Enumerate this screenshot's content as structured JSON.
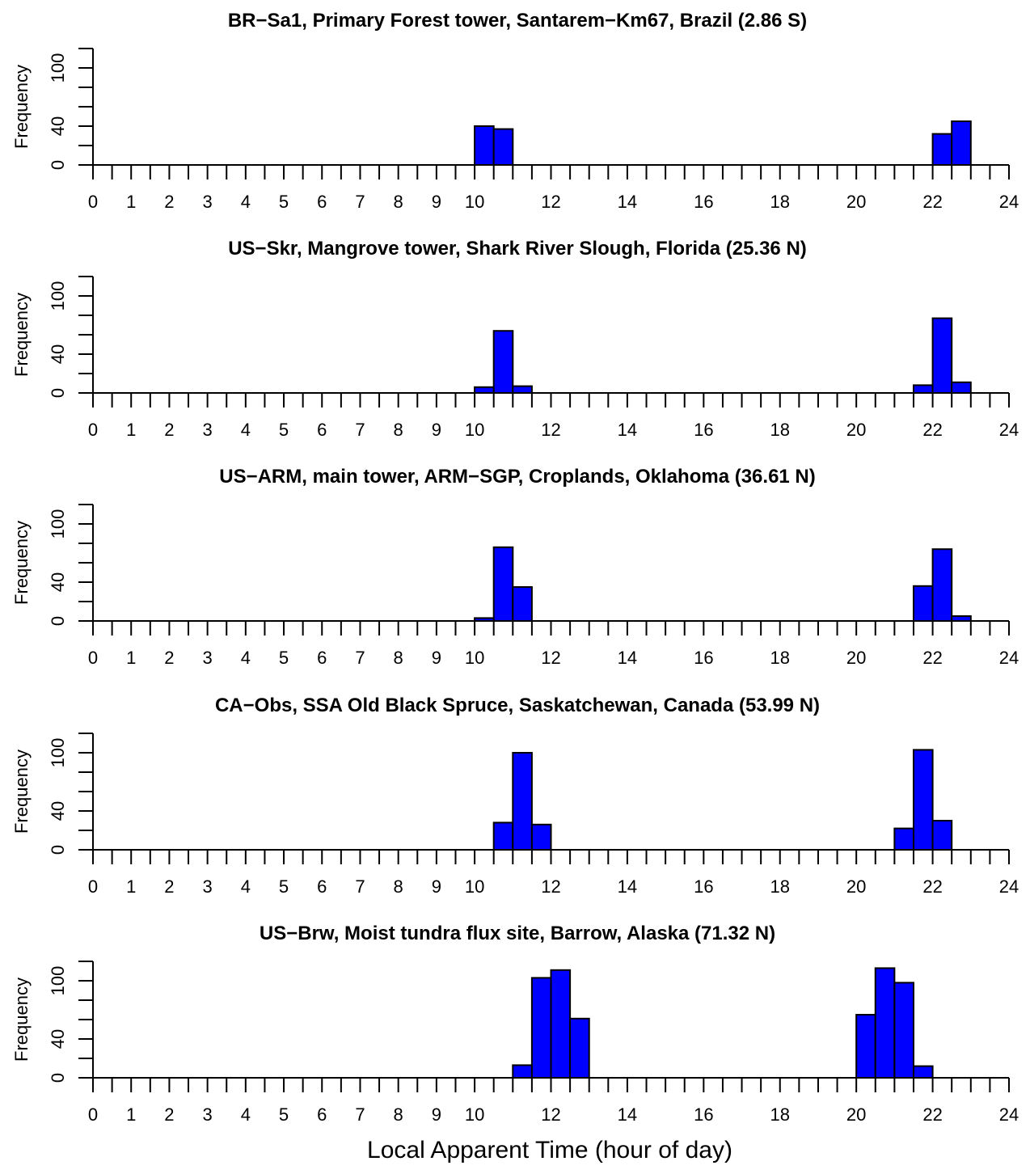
{
  "figure": {
    "xlabel": "Local Apparent Time (hour of day)"
  },
  "chart_data": [
    {
      "type": "bar",
      "title": "BR−Sa1, Primary Forest tower, Santarem−Km67, Brazil (2.86 S)",
      "ylabel": "Frequency",
      "xlabel": "Local Apparent Time (hour of day)",
      "xlim": [
        0,
        24
      ],
      "ylim": [
        0,
        120
      ],
      "bar_color": "#0000ff",
      "bin_width": 0.5,
      "yticks_labeled": [
        0,
        40,
        100
      ],
      "x_tick_labels": [
        "0",
        "1",
        "2",
        "3",
        "4",
        "5",
        "6",
        "7",
        "8",
        "9",
        "10",
        "12",
        "14",
        "16",
        "18",
        "20",
        "22",
        "24"
      ],
      "bins": [
        {
          "start": 10.0,
          "end": 10.5,
          "value": 40
        },
        {
          "start": 10.5,
          "end": 11.0,
          "value": 37
        },
        {
          "start": 22.0,
          "end": 22.5,
          "value": 32
        },
        {
          "start": 22.5,
          "end": 23.0,
          "value": 45
        }
      ]
    },
    {
      "type": "bar",
      "title": "US−Skr, Mangrove tower, Shark River Slough, Florida (25.36 N)",
      "ylabel": "Frequency",
      "xlabel": "Local Apparent Time (hour of day)",
      "xlim": [
        0,
        24
      ],
      "ylim": [
        0,
        120
      ],
      "bar_color": "#0000ff",
      "bin_width": 0.5,
      "yticks_labeled": [
        0,
        40,
        100
      ],
      "x_tick_labels": [
        "0",
        "1",
        "2",
        "3",
        "4",
        "5",
        "6",
        "7",
        "8",
        "9",
        "10",
        "12",
        "14",
        "16",
        "18",
        "20",
        "22",
        "24"
      ],
      "bins": [
        {
          "start": 10.0,
          "end": 10.5,
          "value": 6
        },
        {
          "start": 10.5,
          "end": 11.0,
          "value": 64
        },
        {
          "start": 11.0,
          "end": 11.5,
          "value": 7
        },
        {
          "start": 21.5,
          "end": 22.0,
          "value": 8
        },
        {
          "start": 22.0,
          "end": 22.5,
          "value": 77
        },
        {
          "start": 22.5,
          "end": 23.0,
          "value": 11
        }
      ]
    },
    {
      "type": "bar",
      "title": "US−ARM, main tower, ARM−SGP, Croplands, Oklahoma (36.61 N)",
      "ylabel": "Frequency",
      "xlabel": "Local Apparent Time (hour of day)",
      "xlim": [
        0,
        24
      ],
      "ylim": [
        0,
        120
      ],
      "bar_color": "#0000ff",
      "bin_width": 0.5,
      "yticks_labeled": [
        0,
        40,
        100
      ],
      "x_tick_labels": [
        "0",
        "1",
        "2",
        "3",
        "4",
        "5",
        "6",
        "7",
        "8",
        "9",
        "10",
        "12",
        "14",
        "16",
        "18",
        "20",
        "22",
        "24"
      ],
      "bins": [
        {
          "start": 10.0,
          "end": 10.5,
          "value": 3
        },
        {
          "start": 10.5,
          "end": 11.0,
          "value": 76
        },
        {
          "start": 11.0,
          "end": 11.5,
          "value": 35
        },
        {
          "start": 21.5,
          "end": 22.0,
          "value": 36
        },
        {
          "start": 22.0,
          "end": 22.5,
          "value": 74
        },
        {
          "start": 22.5,
          "end": 23.0,
          "value": 5
        }
      ]
    },
    {
      "type": "bar",
      "title": "CA−Obs, SSA Old Black Spruce, Saskatchewan, Canada (53.99 N)",
      "ylabel": "Frequency",
      "xlabel": "Local Apparent Time (hour of day)",
      "xlim": [
        0,
        24
      ],
      "ylim": [
        0,
        120
      ],
      "bar_color": "#0000ff",
      "bin_width": 0.5,
      "yticks_labeled": [
        0,
        40,
        100
      ],
      "x_tick_labels": [
        "0",
        "1",
        "2",
        "3",
        "4",
        "5",
        "6",
        "7",
        "8",
        "9",
        "10",
        "12",
        "14",
        "16",
        "18",
        "20",
        "22",
        "24"
      ],
      "bins": [
        {
          "start": 10.5,
          "end": 11.0,
          "value": 28
        },
        {
          "start": 11.0,
          "end": 11.5,
          "value": 100
        },
        {
          "start": 11.5,
          "end": 12.0,
          "value": 26
        },
        {
          "start": 21.0,
          "end": 21.5,
          "value": 22
        },
        {
          "start": 21.5,
          "end": 22.0,
          "value": 103
        },
        {
          "start": 22.0,
          "end": 22.5,
          "value": 30
        }
      ]
    },
    {
      "type": "bar",
      "title": "US−Brw, Moist tundra flux site, Barrow, Alaska (71.32 N)",
      "ylabel": "Frequency",
      "xlabel": "Local Apparent Time (hour of day)",
      "xlim": [
        0,
        24
      ],
      "ylim": [
        0,
        120
      ],
      "bar_color": "#0000ff",
      "bin_width": 0.5,
      "yticks_labeled": [
        0,
        40,
        100
      ],
      "x_tick_labels": [
        "0",
        "1",
        "2",
        "3",
        "4",
        "5",
        "6",
        "7",
        "8",
        "9",
        "10",
        "12",
        "14",
        "16",
        "18",
        "20",
        "22",
        "24"
      ],
      "bins": [
        {
          "start": 11.0,
          "end": 11.5,
          "value": 13
        },
        {
          "start": 11.5,
          "end": 12.0,
          "value": 103
        },
        {
          "start": 12.0,
          "end": 12.5,
          "value": 111
        },
        {
          "start": 12.5,
          "end": 13.0,
          "value": 61
        },
        {
          "start": 20.0,
          "end": 20.5,
          "value": 65
        },
        {
          "start": 20.5,
          "end": 21.0,
          "value": 113
        },
        {
          "start": 21.0,
          "end": 21.5,
          "value": 98
        },
        {
          "start": 21.5,
          "end": 22.0,
          "value": 12
        }
      ]
    }
  ]
}
